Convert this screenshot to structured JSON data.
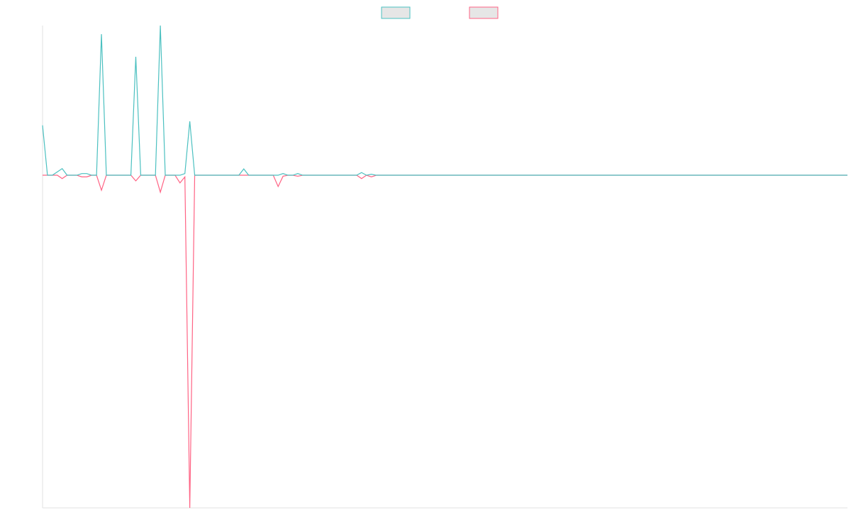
{
  "chart_data": {
    "type": "line",
    "ylim": [
      -100,
      45
    ],
    "series": [
      {
        "color": "#4bc0c0",
        "values": [
          15,
          0,
          0,
          1,
          2,
          0,
          0,
          0,
          0.5,
          0.5,
          0,
          0,
          42.4,
          0,
          0,
          0,
          0,
          0,
          0,
          35.6,
          0,
          0,
          0,
          0,
          45,
          0,
          0,
          0,
          0,
          0.5,
          16.2,
          0,
          0,
          0,
          0,
          0,
          0,
          0,
          0,
          0,
          0,
          1.9,
          0,
          0,
          0,
          0,
          0,
          0,
          0,
          0.5,
          0,
          0,
          0.5,
          0,
          0,
          0,
          0,
          0,
          0,
          0,
          0,
          0,
          0,
          0,
          0,
          0.8,
          0,
          0.3,
          0,
          0,
          0,
          0,
          0,
          0,
          0,
          0,
          0,
          0,
          0,
          0,
          0,
          0,
          0,
          0,
          0,
          0,
          0,
          0,
          0,
          0,
          0,
          0,
          0,
          0,
          0,
          0,
          0,
          0,
          0,
          0,
          0,
          0,
          0,
          0,
          0,
          0,
          0,
          0,
          0,
          0,
          0,
          0,
          0,
          0,
          0,
          0,
          0,
          0,
          0,
          0,
          0,
          0,
          0,
          0,
          0,
          0,
          0,
          0,
          0,
          0,
          0,
          0,
          0,
          0,
          0,
          0,
          0,
          0,
          0,
          0,
          0,
          0,
          0,
          0,
          0,
          0,
          0,
          0,
          0,
          0,
          0,
          0,
          0,
          0,
          0,
          0,
          0,
          0,
          0,
          0,
          0,
          0,
          0,
          0,
          0
        ]
      },
      {
        "color": "#ff6384",
        "values": [
          0,
          0,
          0,
          0,
          -1,
          0,
          0,
          0,
          -0.5,
          -0.5,
          0,
          0,
          -4.5,
          0,
          0,
          0,
          0,
          0,
          0,
          -1.7,
          0,
          0,
          0,
          0,
          -5.1,
          0,
          0,
          0,
          -2.3,
          -0.5,
          -100,
          0,
          0,
          0,
          0,
          0,
          0,
          0,
          0,
          0,
          0,
          0,
          0,
          0,
          0,
          0,
          0,
          0,
          -3.4,
          -0.3,
          0,
          0,
          -0.3,
          0,
          0,
          0,
          0,
          0,
          0,
          0,
          0,
          0,
          0,
          0,
          0,
          -1,
          0,
          -0.5,
          0,
          0,
          0,
          0,
          0,
          0,
          0,
          0,
          0,
          0,
          0,
          0,
          0,
          0,
          0,
          0,
          0,
          0,
          0,
          0,
          0,
          0,
          0,
          0,
          0,
          0,
          0,
          0,
          0,
          0,
          0,
          0,
          0,
          0,
          0,
          0,
          0,
          0,
          0,
          0,
          0,
          0,
          0,
          0,
          0,
          0,
          0,
          0,
          0,
          0,
          0,
          0,
          0,
          0,
          0,
          0,
          0,
          0,
          0,
          0,
          0,
          0,
          0,
          0,
          0,
          0,
          0,
          0,
          0,
          0,
          0,
          0,
          0,
          0,
          0,
          0,
          0,
          0,
          0,
          0,
          0,
          0,
          0,
          0,
          0,
          0,
          0,
          0,
          0,
          0,
          0,
          0,
          0,
          0,
          0,
          0,
          0
        ]
      }
    ],
    "legend_position": "top"
  }
}
